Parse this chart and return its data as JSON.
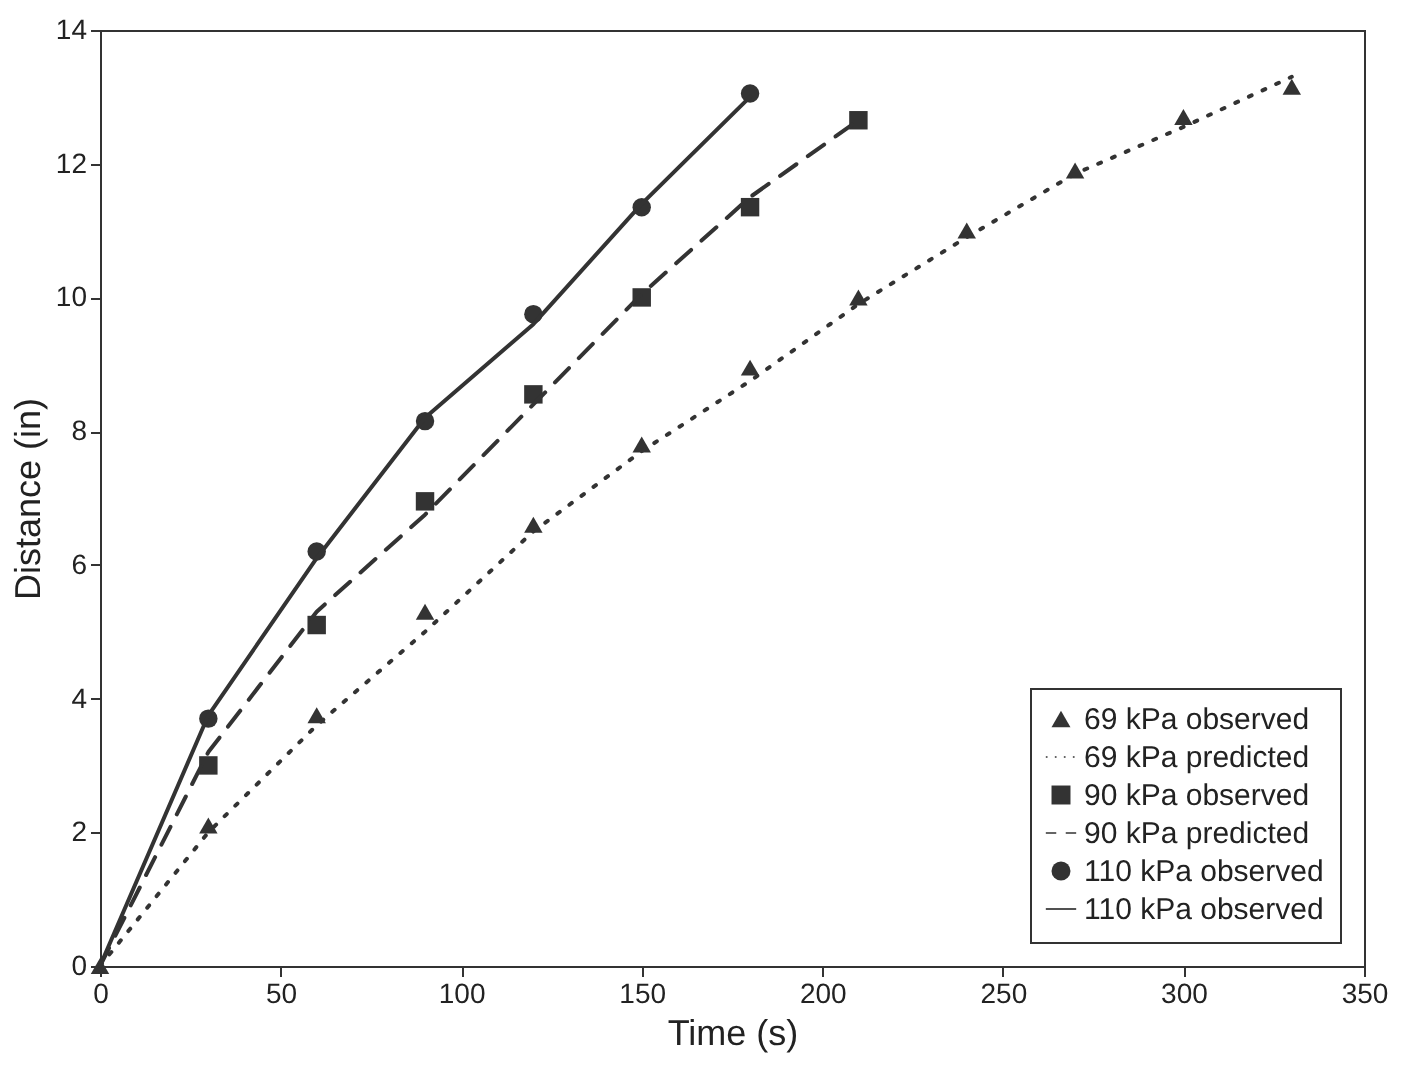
{
  "chart_data": {
    "type": "line",
    "xlabel": "Time (s)",
    "ylabel": "Distance (in)",
    "xlim": [
      0,
      350
    ],
    "xticks": [
      0,
      50,
      100,
      150,
      200,
      250,
      300,
      350
    ],
    "ylim": [
      0,
      14
    ],
    "yticks": [
      0,
      2,
      4,
      6,
      8,
      10,
      12,
      14
    ],
    "grid": false,
    "legend": "bottom right",
    "series": [
      {
        "name": "69 kPa observed",
        "type": "scatter",
        "marker": "triangle",
        "color": "#333333",
        "x": [
          0,
          30,
          60,
          90,
          120,
          150,
          180,
          210,
          240,
          270,
          300,
          330
        ],
        "values": [
          0,
          2.1,
          3.75,
          5.3,
          6.6,
          7.8,
          8.95,
          10.0,
          11.0,
          11.9,
          12.7,
          13.15
        ]
      },
      {
        "name": "69 kPa predicted",
        "line_style": "dotted",
        "color": "#333333",
        "x": [
          0,
          30,
          60,
          90,
          120,
          150,
          180,
          210,
          240,
          270,
          300,
          330
        ],
        "values": [
          0,
          2.0,
          3.6,
          5.0,
          6.5,
          7.7,
          8.75,
          9.9,
          10.9,
          11.85,
          12.55,
          13.3
        ]
      },
      {
        "name": "90 kPa observed",
        "type": "scatter",
        "marker": "square",
        "color": "#333333",
        "x": [
          30,
          60,
          90,
          120,
          150,
          180,
          210
        ],
        "values": [
          3.0,
          5.1,
          6.95,
          8.55,
          10.0,
          11.35,
          12.65
        ]
      },
      {
        "name": "90 kPa predicted",
        "line_style": "dashed",
        "color": "#333333",
        "x": [
          0,
          30,
          60,
          90,
          120,
          150,
          180,
          210
        ],
        "values": [
          0,
          3.2,
          5.3,
          6.75,
          8.4,
          10.05,
          11.5,
          12.65
        ]
      },
      {
        "name": "110 kPa observed",
        "type": "scatter",
        "marker": "circle",
        "color": "#333333",
        "x": [
          30,
          60,
          90,
          120,
          150,
          180
        ],
        "values": [
          3.7,
          6.2,
          8.15,
          9.75,
          11.35,
          13.05
        ]
      },
      {
        "name": "110 kPa observed",
        "line_style": "solid",
        "color": "#333333",
        "x": [
          0,
          30,
          60,
          90,
          120,
          150,
          180
        ],
        "values": [
          0,
          3.75,
          6.1,
          8.2,
          9.6,
          11.4,
          13.0
        ]
      }
    ]
  }
}
